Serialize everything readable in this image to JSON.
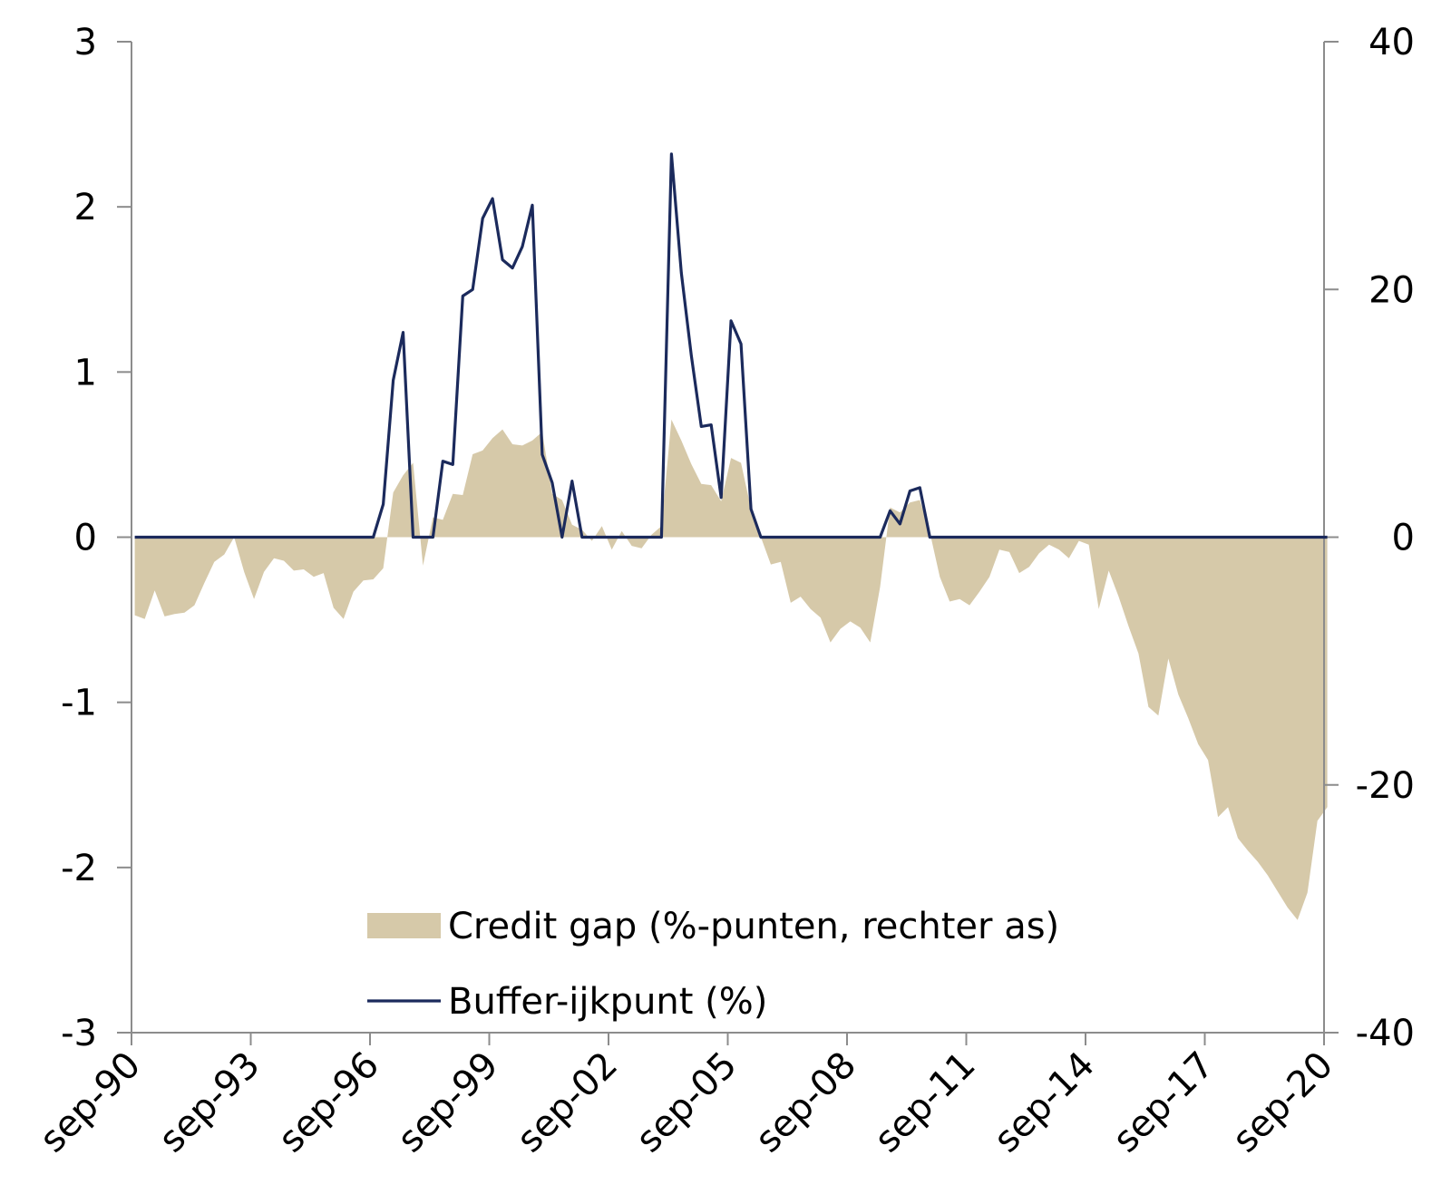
{
  "chart_data": {
    "type": "area+line",
    "title": "",
    "colors": {
      "credit_gap": "#d6c9a9",
      "buffer": "#1b2a5c",
      "axis": "#8c8c8c"
    },
    "x_tick_labels": [
      "sep-90",
      "sep-93",
      "sep-96",
      "sep-99",
      "sep-02",
      "sep-05",
      "sep-08",
      "sep-11",
      "sep-14",
      "sep-17",
      "sep-20"
    ],
    "x_range": [
      1990.667,
      2020.667
    ],
    "y_left": {
      "ticks": [
        "3",
        "2",
        "1",
        "0",
        "-1",
        "-2",
        "-3"
      ],
      "min": -3,
      "max": 3
    },
    "y_right": {
      "ticks": [
        "40",
        "20",
        "0",
        "-20",
        "-40"
      ],
      "min": -40,
      "max": 40
    },
    "legend": {
      "credit_gap_label": "Credit gap (%-punten, rechter as)",
      "buffer_label": "Buffer-ijkpunt (%)"
    },
    "series": [
      {
        "name": "Credit gap (%-punten, rechter as)",
        "axis": "right",
        "style": "area",
        "points": [
          [
            1990.75,
            -6.3
          ],
          [
            1991.0,
            -6.6
          ],
          [
            1991.25,
            -4.3
          ],
          [
            1991.5,
            -6.4
          ],
          [
            1991.75,
            -6.2
          ],
          [
            1992.0,
            -6.1
          ],
          [
            1992.25,
            -5.5
          ],
          [
            1992.5,
            -3.7
          ],
          [
            1992.75,
            -2.0
          ],
          [
            1993.0,
            -1.4
          ],
          [
            1993.25,
            0.0
          ],
          [
            1993.5,
            -2.8
          ],
          [
            1993.75,
            -5.0
          ],
          [
            1994.0,
            -2.8
          ],
          [
            1994.25,
            -1.7
          ],
          [
            1994.5,
            -1.9
          ],
          [
            1994.75,
            -2.7
          ],
          [
            1995.0,
            -2.6
          ],
          [
            1995.25,
            -3.2
          ],
          [
            1995.5,
            -2.9
          ],
          [
            1995.75,
            -5.7
          ],
          [
            1996.0,
            -6.6
          ],
          [
            1996.25,
            -4.4
          ],
          [
            1996.5,
            -3.5
          ],
          [
            1996.75,
            -3.4
          ],
          [
            1997.0,
            -2.5
          ],
          [
            1997.25,
            3.6
          ],
          [
            1997.5,
            5.0
          ],
          [
            1997.75,
            6.0
          ],
          [
            1998.0,
            -2.3
          ],
          [
            1998.25,
            1.6
          ],
          [
            1998.5,
            1.4
          ],
          [
            1998.75,
            3.5
          ],
          [
            1999.0,
            3.4
          ],
          [
            1999.25,
            6.7
          ],
          [
            1999.5,
            7.0
          ],
          [
            1999.75,
            8.0
          ],
          [
            2000.0,
            8.7
          ],
          [
            2000.25,
            7.5
          ],
          [
            2000.5,
            7.4
          ],
          [
            2000.75,
            7.8
          ],
          [
            2001.0,
            8.5
          ],
          [
            2001.25,
            3.5
          ],
          [
            2001.5,
            3.0
          ],
          [
            2001.75,
            1.0
          ],
          [
            2002.0,
            0.6
          ],
          [
            2002.25,
            -0.3
          ],
          [
            2002.5,
            0.9
          ],
          [
            2002.75,
            -1.0
          ],
          [
            2003.0,
            0.5
          ],
          [
            2003.25,
            -0.7
          ],
          [
            2003.5,
            -0.9
          ],
          [
            2003.75,
            0.2
          ],
          [
            2004.0,
            0.9
          ],
          [
            2004.25,
            9.5
          ],
          [
            2004.5,
            7.8
          ],
          [
            2004.75,
            5.9
          ],
          [
            2005.0,
            4.3
          ],
          [
            2005.25,
            4.2
          ],
          [
            2005.5,
            2.9
          ],
          [
            2005.75,
            6.4
          ],
          [
            2006.0,
            6.0
          ],
          [
            2006.25,
            2.3
          ],
          [
            2006.5,
            0.0
          ],
          [
            2006.75,
            -2.2
          ],
          [
            2007.0,
            -2.0
          ],
          [
            2007.25,
            -5.3
          ],
          [
            2007.5,
            -4.8
          ],
          [
            2007.75,
            -5.8
          ],
          [
            2008.0,
            -6.5
          ],
          [
            2008.25,
            -8.5
          ],
          [
            2008.5,
            -7.4
          ],
          [
            2008.75,
            -6.8
          ],
          [
            2009.0,
            -7.3
          ],
          [
            2009.25,
            -8.5
          ],
          [
            2009.5,
            -4.0
          ],
          [
            2009.75,
            2.4
          ],
          [
            2010.0,
            2.0
          ],
          [
            2010.25,
            2.8
          ],
          [
            2010.5,
            3.0
          ],
          [
            2010.75,
            0.4
          ],
          [
            2011.0,
            -3.2
          ],
          [
            2011.25,
            -5.2
          ],
          [
            2011.5,
            -5.0
          ],
          [
            2011.75,
            -5.5
          ],
          [
            2012.0,
            -4.4
          ],
          [
            2012.25,
            -3.2
          ],
          [
            2012.5,
            -1.0
          ],
          [
            2012.75,
            -1.2
          ],
          [
            2013.0,
            -2.9
          ],
          [
            2013.25,
            -2.4
          ],
          [
            2013.5,
            -1.3
          ],
          [
            2013.75,
            -0.6
          ],
          [
            2014.0,
            -1.0
          ],
          [
            2014.25,
            -1.7
          ],
          [
            2014.5,
            -0.3
          ],
          [
            2014.75,
            -0.6
          ],
          [
            2015.0,
            -5.8
          ],
          [
            2015.25,
            -2.7
          ],
          [
            2015.5,
            -4.8
          ],
          [
            2015.75,
            -7.2
          ],
          [
            2016.0,
            -9.4
          ],
          [
            2016.25,
            -13.7
          ],
          [
            2016.5,
            -14.4
          ],
          [
            2016.75,
            -9.8
          ],
          [
            2017.0,
            -12.7
          ],
          [
            2017.25,
            -14.6
          ],
          [
            2017.5,
            -16.7
          ],
          [
            2017.75,
            -18.0
          ],
          [
            2018.0,
            -22.6
          ],
          [
            2018.25,
            -21.8
          ],
          [
            2018.5,
            -24.3
          ],
          [
            2018.75,
            -25.3
          ],
          [
            2019.0,
            -26.2
          ],
          [
            2019.25,
            -27.3
          ],
          [
            2019.5,
            -28.6
          ],
          [
            2019.75,
            -29.9
          ],
          [
            2020.0,
            -30.9
          ],
          [
            2020.25,
            -28.7
          ],
          [
            2020.5,
            -22.9
          ],
          [
            2020.75,
            -21.8
          ]
        ]
      },
      {
        "name": "Buffer-ijkpunt (%)",
        "axis": "left",
        "style": "line",
        "points": [
          [
            1990.75,
            0
          ],
          [
            1996.75,
            0
          ],
          [
            1997.0,
            0.2
          ],
          [
            1997.25,
            0.95
          ],
          [
            1997.5,
            1.24
          ],
          [
            1997.75,
            0
          ],
          [
            1998.0,
            0
          ],
          [
            1998.25,
            0
          ],
          [
            1998.5,
            0.46
          ],
          [
            1998.75,
            0.44
          ],
          [
            1999.0,
            1.46
          ],
          [
            1999.25,
            1.5
          ],
          [
            1999.5,
            1.93
          ],
          [
            1999.75,
            2.05
          ],
          [
            2000.0,
            1.68
          ],
          [
            2000.25,
            1.63
          ],
          [
            2000.5,
            1.76
          ],
          [
            2000.75,
            2.01
          ],
          [
            2001.0,
            0.5
          ],
          [
            2001.25,
            0.33
          ],
          [
            2001.5,
            0
          ],
          [
            2001.75,
            0.34
          ],
          [
            2002.0,
            0
          ],
          [
            2002.5,
            0
          ],
          [
            2003.0,
            0
          ],
          [
            2003.5,
            0
          ],
          [
            2004.0,
            0
          ],
          [
            2004.25,
            2.32
          ],
          [
            2004.5,
            1.6
          ],
          [
            2004.75,
            1.1
          ],
          [
            2005.0,
            0.67
          ],
          [
            2005.25,
            0.68
          ],
          [
            2005.5,
            0.24
          ],
          [
            2005.75,
            1.31
          ],
          [
            2006.0,
            1.17
          ],
          [
            2006.25,
            0.17
          ],
          [
            2006.5,
            0
          ],
          [
            2009.5,
            0
          ],
          [
            2009.75,
            0.16
          ],
          [
            2010.0,
            0.08
          ],
          [
            2010.25,
            0.28
          ],
          [
            2010.5,
            0.3
          ],
          [
            2010.75,
            0
          ],
          [
            2020.75,
            0
          ]
        ]
      }
    ]
  }
}
